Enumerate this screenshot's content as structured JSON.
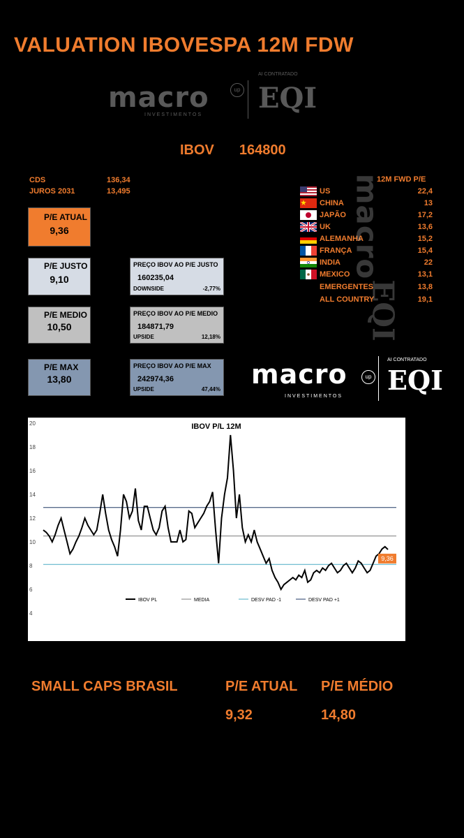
{
  "title": "VALUATION IBOVESPA 12M FDW",
  "logo": {
    "ai": "AI CONTRATADO",
    "macro": "macro",
    "up": "up",
    "eqi": "EQI",
    "sub": "INVESTIMENTOS"
  },
  "ibov": {
    "label": "IBOV",
    "value": "164800"
  },
  "cds": {
    "label": "CDS",
    "value": "136,34"
  },
  "juros": {
    "label": "JUROS 2031",
    "value": "13,495"
  },
  "pe_atual": {
    "label": "P/E ATUAL",
    "value": "9,36",
    "color": "#f07c2e"
  },
  "pe_justo": {
    "label": "P/E JUSTO",
    "value": "9,10",
    "color": "#d6dce5",
    "price_label": "PREÇO IBOV AO P/E JUSTO",
    "price": "160235,04",
    "side_label": "DOWNSIDE",
    "side_value": "-2,77%"
  },
  "pe_medio": {
    "label": "P/E MEDIO",
    "value": "10,50",
    "color": "#c0c0c0",
    "price_label": "PREÇO IBOV AO P/E MEDIO",
    "price": "184871,79",
    "side_label": "UPSIDE",
    "side_value": "12,18%"
  },
  "pe_max": {
    "label": "P/E MAX",
    "value": "13,80",
    "color": "#8497b0",
    "price_label": "PREÇO IBOV AO P/E MAX",
    "price": "242974,36",
    "side_label": "UPSIDE",
    "side_value": "47,44%"
  },
  "fwd_header": "12M FWD P/E",
  "countries": [
    {
      "name": "US",
      "pe": "22,4",
      "flag": "us"
    },
    {
      "name": "CHINA",
      "pe": "13",
      "flag": "cn"
    },
    {
      "name": "JAPÃO",
      "pe": "17,2",
      "flag": "jp"
    },
    {
      "name": "UK",
      "pe": "13,6",
      "flag": "uk"
    },
    {
      "name": "ALEMANHA",
      "pe": "15,2",
      "flag": "de"
    },
    {
      "name": "FRANÇA",
      "pe": "15,4",
      "flag": "fr"
    },
    {
      "name": "INDIA",
      "pe": "22",
      "flag": "in"
    },
    {
      "name": "MEXICO",
      "pe": "13,1",
      "flag": "mx"
    },
    {
      "name": "EMERGENTES",
      "pe": "13,8",
      "flag": ""
    },
    {
      "name": "ALL COUNTRY",
      "pe": "19,1",
      "flag": ""
    }
  ],
  "chart_data": {
    "type": "line",
    "title": "IBOV P/L 12M",
    "ylim": [
      4,
      20
    ],
    "yticks": [
      "4",
      "6",
      "8",
      "10",
      "12",
      "14",
      "16",
      "18",
      "20"
    ],
    "grid": false,
    "legend_position": "bottom",
    "last_label": "9,36",
    "series": [
      {
        "name": "IBOV PL",
        "color": "#000000",
        "values": [
          11,
          10.8,
          10.5,
          10,
          10.6,
          11.4,
          12,
          11,
          10,
          9,
          9.4,
          10,
          10.5,
          11.2,
          12,
          11.4,
          11,
          10.6,
          11,
          12.4,
          14,
          12.4,
          11,
          10.2,
          9.6,
          8.8,
          11,
          14,
          13.4,
          12,
          12.6,
          14.5,
          11.8,
          11,
          13,
          13,
          12,
          11,
          10.6,
          11.2,
          12.6,
          13,
          11.2,
          10,
          10,
          10,
          11,
          10,
          10.2,
          12.6,
          12.4,
          11.2,
          11.6,
          12,
          12.4,
          13,
          13.4,
          14.2,
          11,
          8.2,
          12,
          14,
          15.4,
          19,
          16,
          12,
          14,
          11.2,
          10,
          10.6,
          10,
          11,
          10,
          9.4,
          8.8,
          8.2,
          8.6,
          7.6,
          7,
          6.6,
          6,
          6.4,
          6.6,
          6.8,
          7,
          6.8,
          7.2,
          7,
          7.6,
          6.6,
          6.8,
          7.4,
          7.6,
          7.4,
          7.8,
          7.6,
          8,
          8.2,
          7.8,
          7.4,
          7.6,
          8,
          8.2,
          7.8,
          7.4,
          7.8,
          8.4,
          8.2,
          7.8,
          7.4,
          7.6,
          8.2,
          8.8,
          9,
          9.4,
          9.6,
          9.36
        ]
      },
      {
        "name": "MEDIA",
        "color": "#7f7f7f",
        "value": 10.5
      },
      {
        "name": "DESV PAD -1",
        "color": "#4bacc6",
        "value": 8.1
      },
      {
        "name": "DESV PAD +1",
        "color": "#1f3864",
        "value": 12.9
      }
    ]
  },
  "small_caps": {
    "label": "SMALL CAPS BRASIL",
    "atual_label": "P/E ATUAL",
    "atual_value": "9,32",
    "medio_label": "P/E MÉDIO",
    "medio_value": "14,80"
  }
}
